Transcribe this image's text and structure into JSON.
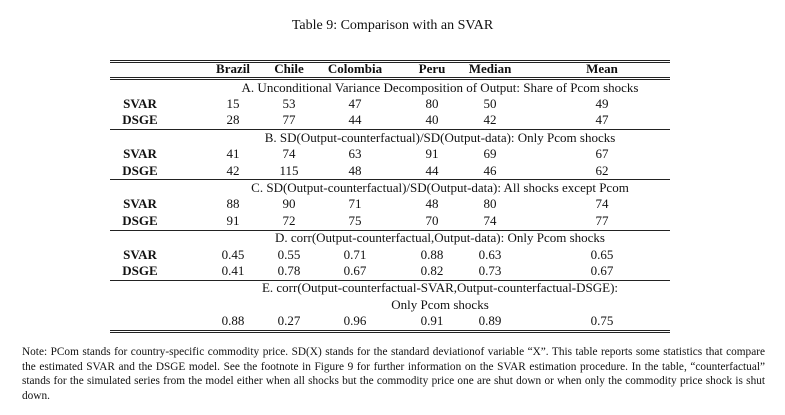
{
  "title": "Table 9: Comparison with an SVAR",
  "table": {
    "header": [
      "Brazil",
      "Chile",
      "Colombia",
      "Peru",
      "Median",
      "Mean"
    ],
    "sections": [
      {
        "title": [
          "A. Unconditional Variance Decomposition of Output: Share of Pcom shocks"
        ],
        "rows": [
          {
            "label": "SVAR",
            "values": [
              "15",
              "53",
              "47",
              "80",
              "50",
              "49"
            ]
          },
          {
            "label": "DSGE",
            "values": [
              "28",
              "77",
              "44",
              "40",
              "42",
              "47"
            ]
          }
        ]
      },
      {
        "title": [
          "B. SD(Output-counterfactual)/SD(Output-data): Only Pcom shocks"
        ],
        "rows": [
          {
            "label": "SVAR",
            "values": [
              "41",
              "74",
              "63",
              "91",
              "69",
              "67"
            ]
          },
          {
            "label": "DSGE",
            "values": [
              "42",
              "115",
              "48",
              "44",
              "46",
              "62"
            ]
          }
        ]
      },
      {
        "title": [
          "C. SD(Output-counterfactual)/SD(Output-data): All shocks except Pcom"
        ],
        "rows": [
          {
            "label": "SVAR",
            "values": [
              "88",
              "90",
              "71",
              "48",
              "80",
              "74"
            ]
          },
          {
            "label": "DSGE",
            "values": [
              "91",
              "72",
              "75",
              "70",
              "74",
              "77"
            ]
          }
        ]
      },
      {
        "title": [
          "D. corr(Output-counterfactual,Output-data): Only Pcom shocks"
        ],
        "rows": [
          {
            "label": "SVAR",
            "values": [
              "0.45",
              "0.55",
              "0.71",
              "0.88",
              "0.63",
              "0.65"
            ]
          },
          {
            "label": "DSGE",
            "values": [
              "0.41",
              "0.78",
              "0.67",
              "0.82",
              "0.73",
              "0.67"
            ]
          }
        ]
      },
      {
        "title": [
          "E. corr(Output-counterfactual-SVAR,Output-counterfactual-DSGE):",
          "Only Pcom shocks"
        ],
        "rows": [
          {
            "values": [
              "0.88",
              "0.27",
              "0.96",
              "0.91",
              "0.89",
              "0.75"
            ]
          }
        ]
      }
    ]
  },
  "note": "Note: PCom stands for country-specific commodity price. SD(X) stands for the standard deviationof variable “X”. This table reports some statistics that compare the estimated SVAR and the DSGE model. See the footnote in Figure 9 for further information on the SVAR estimation procedure. In the table, “counterfactual” stands for the simulated series from the model either when all shocks but the commodity price one are shut down or when only the commodity price shock is shut down."
}
